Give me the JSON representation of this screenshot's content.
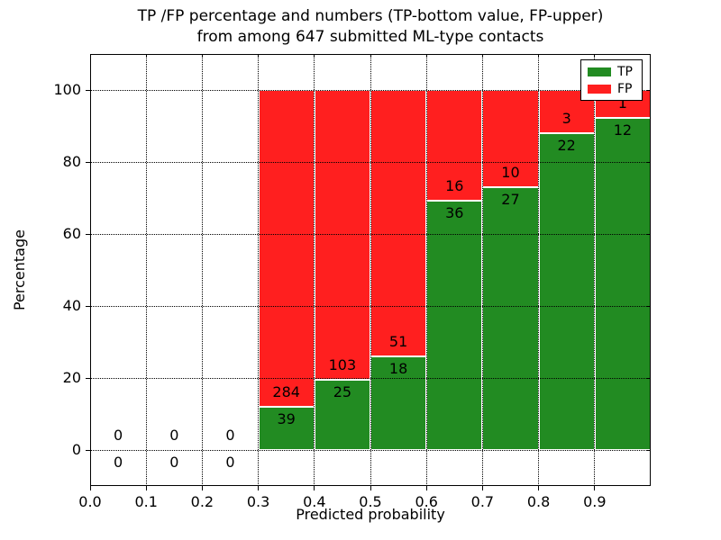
{
  "chart_data": {
    "type": "bar",
    "subtype": "stacked-percentage-histogram",
    "title_lines": [
      "TP /FP percentage and numbers (TP-bottom value, FP-upper)",
      "from among 647 submitted ML-type contacts"
    ],
    "xlabel": "Predicted probability",
    "ylabel": "Percentage",
    "xlim": [
      0.0,
      1.0
    ],
    "ylim": [
      -10,
      110
    ],
    "xtick_values": [
      0.0,
      0.1,
      0.2,
      0.3,
      0.4,
      0.5,
      0.6,
      0.7,
      0.8,
      0.9
    ],
    "xtick_labels": [
      "0.0",
      "0.1",
      "0.2",
      "0.3",
      "0.4",
      "0.5",
      "0.6",
      "0.7",
      "0.8",
      "0.9"
    ],
    "ytick_values": [
      0,
      20,
      40,
      60,
      80,
      100
    ],
    "ytick_labels": [
      "0",
      "20",
      "40",
      "60",
      "80",
      "100"
    ],
    "grid_style": "dotted",
    "bin_edges": [
      0.0,
      0.1,
      0.2,
      0.3,
      0.4,
      0.5,
      0.6,
      0.7,
      0.8,
      0.9,
      1.0
    ],
    "categories": [
      "0.0-0.1",
      "0.1-0.2",
      "0.2-0.3",
      "0.3-0.4",
      "0.4-0.5",
      "0.5-0.6",
      "0.6-0.7",
      "0.7-0.8",
      "0.8-0.9",
      "0.9-1.0"
    ],
    "series": [
      {
        "name": "TP",
        "color": "#228b22",
        "counts": [
          0,
          0,
          0,
          39,
          25,
          18,
          36,
          27,
          22,
          12
        ]
      },
      {
        "name": "FP",
        "color": "#ff1f1f",
        "counts": [
          0,
          0,
          0,
          284,
          103,
          51,
          16,
          10,
          3,
          1
        ]
      }
    ],
    "tp_percent_of_bin": [
      null,
      null,
      null,
      12.1,
      19.5,
      26.1,
      69.2,
      73.0,
      88.0,
      92.3
    ],
    "total_contacts": 647,
    "legend": {
      "position": "upper-right",
      "entries": [
        {
          "label": "TP",
          "color": "#228b22"
        },
        {
          "label": "FP",
          "color": "#ff1f1f"
        }
      ]
    }
  }
}
